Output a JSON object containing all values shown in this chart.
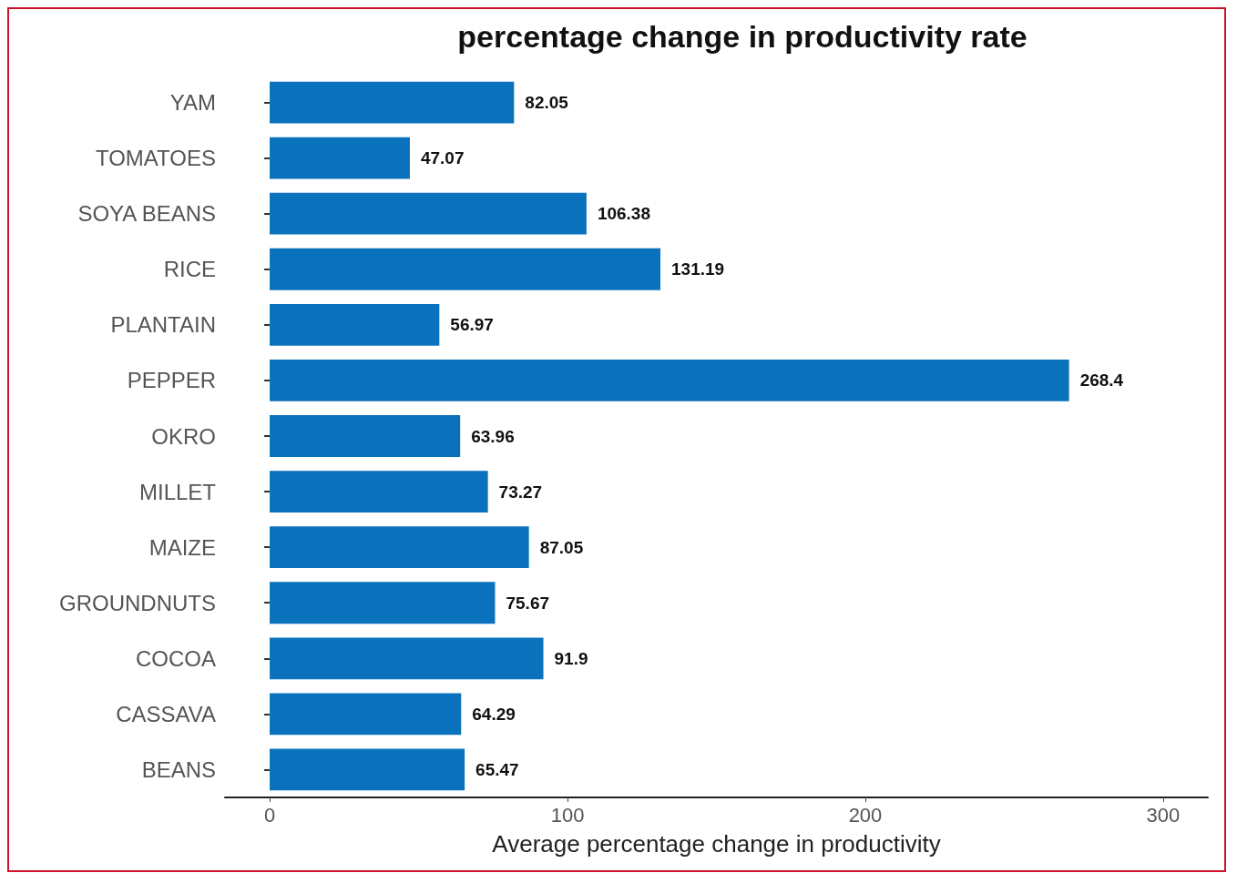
{
  "chart_data": {
    "type": "bar",
    "orientation": "horizontal",
    "title": "percentage change in productivity rate",
    "xlabel": "Average percentage change in productivity",
    "categories": [
      "YAM",
      "TOMATOES",
      "SOYA BEANS",
      "RICE",
      "PLANTAIN",
      "PEPPER",
      "OKRO",
      "MILLET",
      "MAIZE",
      "GROUNDNUTS",
      "COCOA",
      "CASSAVA",
      "BEANS"
    ],
    "values": [
      82.05,
      47.07,
      106.38,
      131.19,
      56.97,
      268.4,
      63.96,
      73.27,
      87.05,
      75.67,
      91.9,
      64.29,
      65.47
    ],
    "color": "#0a72bc",
    "xlim": [
      -15,
      315
    ],
    "xticks": [
      0,
      100,
      200,
      300
    ],
    "data_labels": true,
    "grid": false
  }
}
